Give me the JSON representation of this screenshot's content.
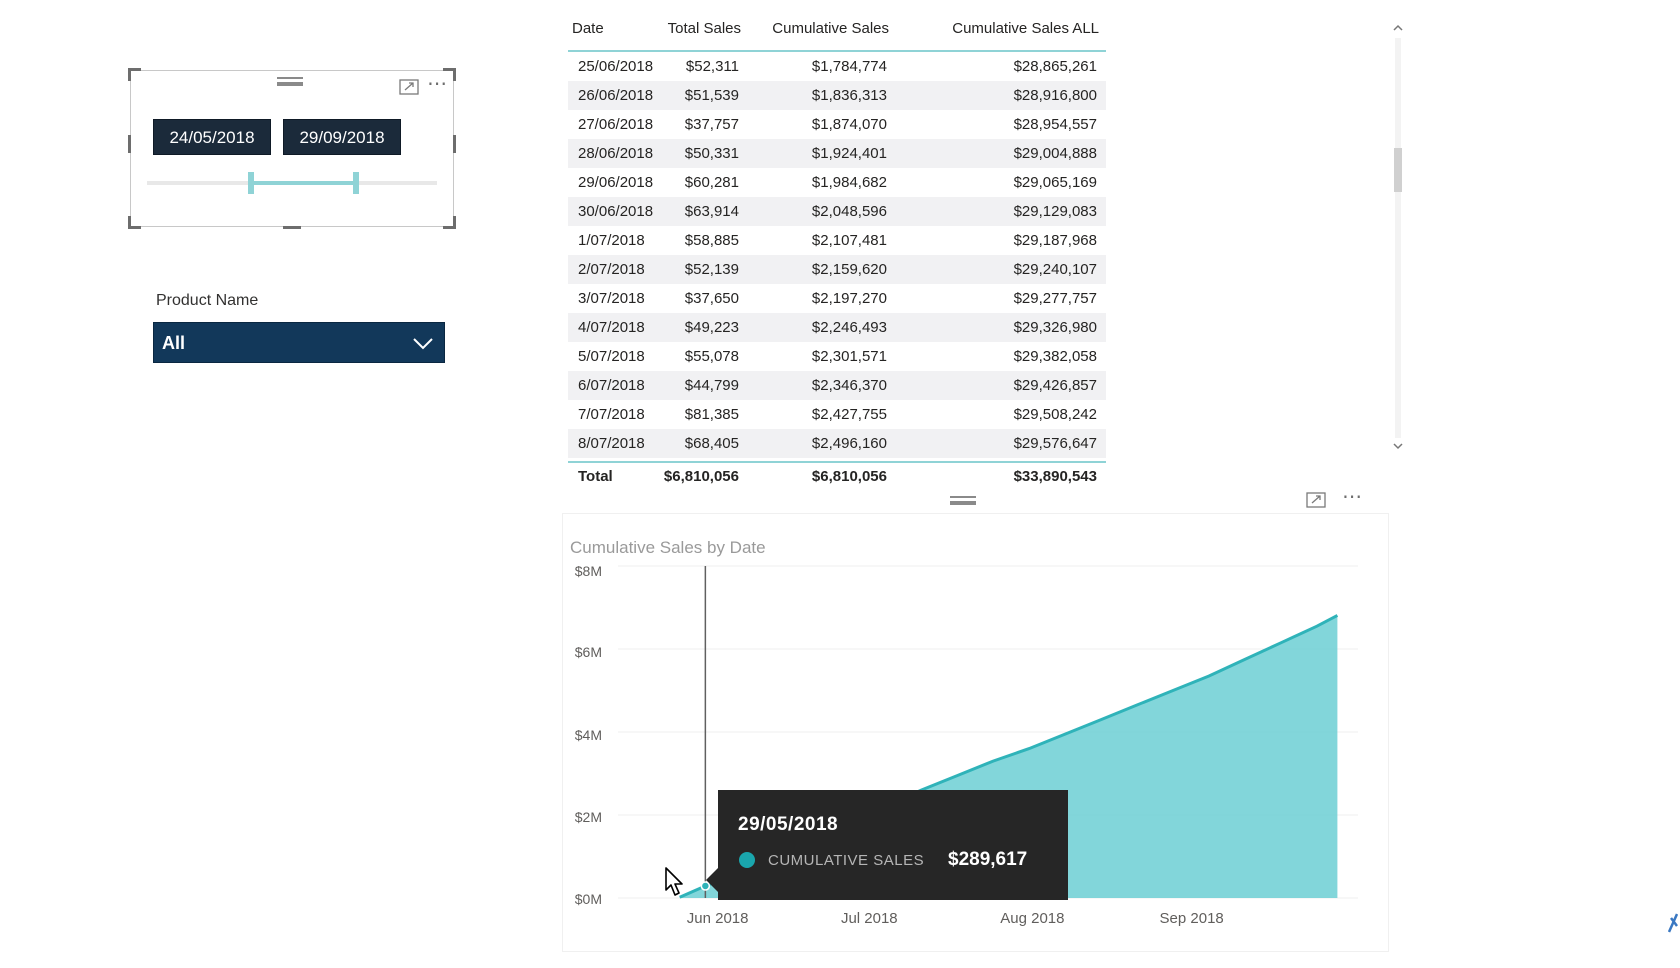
{
  "date_slicer": {
    "start_date": "24/05/2018",
    "end_date": "29/09/2018",
    "range_fraction_start": 0.36,
    "range_fraction_end": 0.72
  },
  "product_filter": {
    "label": "Product Name",
    "selected": "All"
  },
  "table": {
    "columns": [
      "Date",
      "Total Sales",
      "Cumulative Sales",
      "Cumulative Sales ALL"
    ],
    "rows": [
      [
        "25/06/2018",
        "$52,311",
        "$1,784,774",
        "$28,865,261"
      ],
      [
        "26/06/2018",
        "$51,539",
        "$1,836,313",
        "$28,916,800"
      ],
      [
        "27/06/2018",
        "$37,757",
        "$1,874,070",
        "$28,954,557"
      ],
      [
        "28/06/2018",
        "$50,331",
        "$1,924,401",
        "$29,004,888"
      ],
      [
        "29/06/2018",
        "$60,281",
        "$1,984,682",
        "$29,065,169"
      ],
      [
        "30/06/2018",
        "$63,914",
        "$2,048,596",
        "$29,129,083"
      ],
      [
        "1/07/2018",
        "$58,885",
        "$2,107,481",
        "$29,187,968"
      ],
      [
        "2/07/2018",
        "$52,139",
        "$2,159,620",
        "$29,240,107"
      ],
      [
        "3/07/2018",
        "$37,650",
        "$2,197,270",
        "$29,277,757"
      ],
      [
        "4/07/2018",
        "$49,223",
        "$2,246,493",
        "$29,326,980"
      ],
      [
        "5/07/2018",
        "$55,078",
        "$2,301,571",
        "$29,382,058"
      ],
      [
        "6/07/2018",
        "$44,799",
        "$2,346,370",
        "$29,426,857"
      ],
      [
        "7/07/2018",
        "$81,385",
        "$2,427,755",
        "$29,508,242"
      ],
      [
        "8/07/2018",
        "$68,405",
        "$2,496,160",
        "$29,576,647"
      ]
    ],
    "total": [
      "Total",
      "$6,810,056",
      "$6,810,056",
      "$33,890,543"
    ]
  },
  "chart_data": {
    "type": "area",
    "title": "Cumulative Sales by Date",
    "series": [
      {
        "name": "Cumulative Sales",
        "color": "#6ccfd3",
        "x": [
          "2018-05-24",
          "2018-05-29",
          "2018-06-05",
          "2018-06-12",
          "2018-06-19",
          "2018-06-26",
          "2018-07-03",
          "2018-07-10",
          "2018-07-17",
          "2018-07-24",
          "2018-07-31",
          "2018-08-07",
          "2018-08-14",
          "2018-08-21",
          "2018-08-28",
          "2018-09-04",
          "2018-09-11",
          "2018-09-18",
          "2018-09-25",
          "2018-09-29"
        ],
        "y": [
          0.02,
          0.29,
          0.65,
          1.05,
          1.42,
          1.84,
          2.2,
          2.6,
          2.95,
          3.3,
          3.6,
          3.95,
          4.3,
          4.65,
          5.0,
          5.35,
          5.75,
          6.15,
          6.55,
          6.81
        ]
      }
    ],
    "y_unit": "$M",
    "ylim": [
      0,
      8
    ],
    "y_ticks": [
      "$0M",
      "$2M",
      "$4M",
      "$6M",
      "$8M"
    ],
    "x_ticks": [
      "Jun 2018",
      "Jul 2018",
      "Aug 2018",
      "Sep 2018"
    ],
    "xlim": [
      "2018-05-24",
      "2018-09-29"
    ],
    "grid": true
  },
  "tooltip": {
    "date": "29/05/2018",
    "label": "CUMULATIVE SALES",
    "value": "$289,617",
    "color": "#1aa6ad"
  },
  "icons": {
    "focus_mode": "focus-mode-icon",
    "more_options": "more-options-icon",
    "drag_grip": "drag-grip-icon"
  }
}
